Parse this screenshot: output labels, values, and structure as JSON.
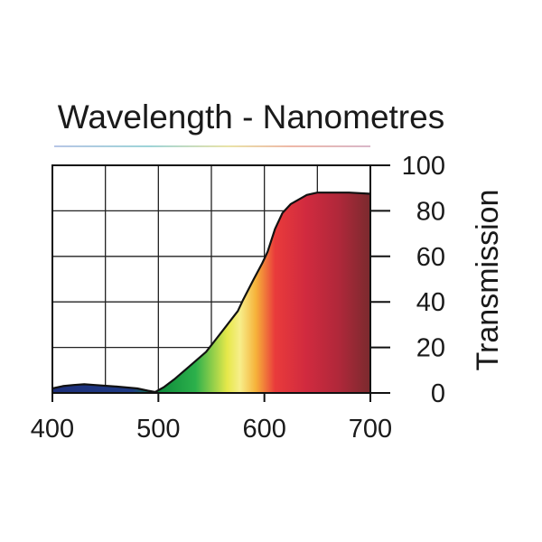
{
  "chart_data": {
    "type": "area",
    "title": "Wavelength - Nanometres",
    "xlabel": "",
    "ylabel": "Transmission",
    "xlim": [
      400,
      700
    ],
    "ylim": [
      0,
      100
    ],
    "x_ticks": [
      400,
      500,
      600,
      700
    ],
    "y_ticks": [
      0,
      20,
      40,
      60,
      80,
      100
    ],
    "grid": true,
    "series": [
      {
        "name": "Transmission",
        "x": [
          400,
          410,
          420,
          430,
          440,
          460,
          480,
          490,
          497,
          505,
          515,
          530,
          545,
          555,
          565,
          575,
          580,
          590,
          598,
          603,
          610,
          617,
          625,
          640,
          650,
          660,
          680,
          700
        ],
        "y": [
          2,
          3,
          3.5,
          3.8,
          3.5,
          2.8,
          2,
          1,
          0.4,
          2.5,
          6,
          12,
          18,
          24,
          30,
          36,
          41,
          50,
          57,
          62,
          72,
          79,
          83,
          87,
          88,
          88,
          88,
          87.5
        ]
      }
    ]
  }
}
